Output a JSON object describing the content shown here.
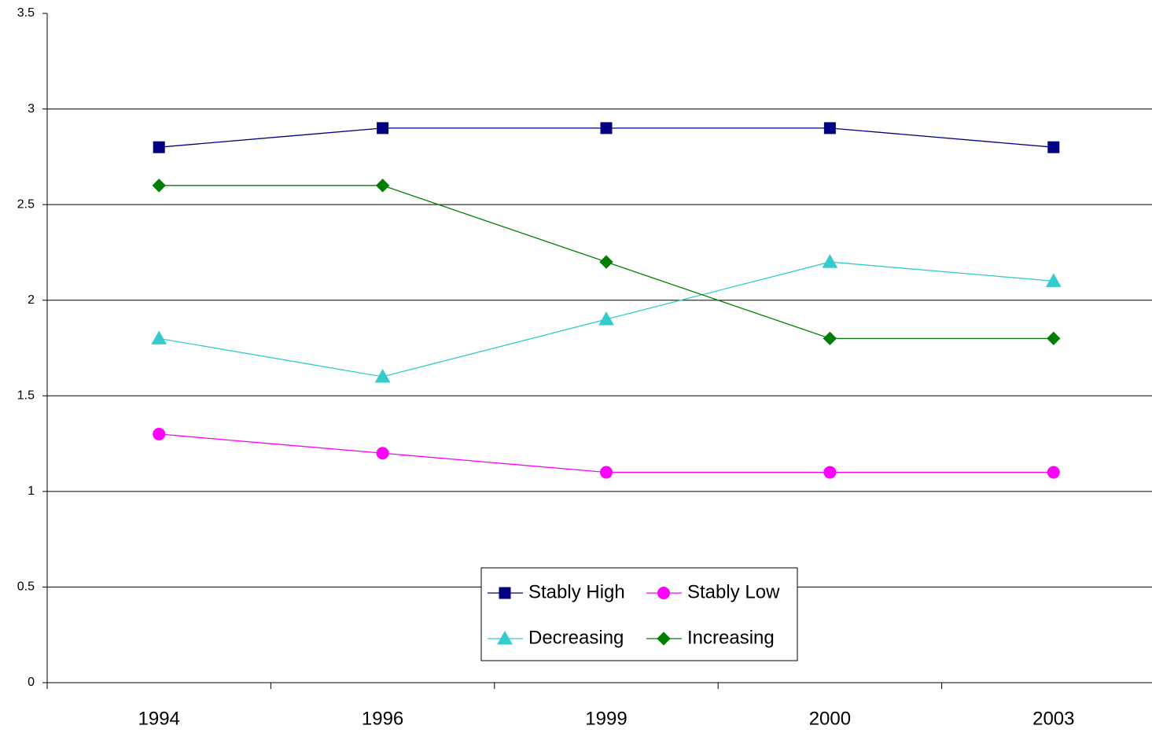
{
  "chart_data": {
    "type": "line",
    "categories": [
      "1994",
      "1996",
      "1999",
      "2000",
      "2003"
    ],
    "series": [
      {
        "name": "Stably High",
        "color": "#000080",
        "marker": "square",
        "values": [
          2.8,
          2.9,
          2.9,
          2.9,
          2.8
        ]
      },
      {
        "name": "Stably Low",
        "color": "#ff00ff",
        "marker": "circle",
        "values": [
          1.3,
          1.2,
          1.1,
          1.1,
          1.1
        ]
      },
      {
        "name": "Decreasing",
        "color": "#33cccc",
        "marker": "triangle",
        "values": [
          1.8,
          1.6,
          1.9,
          2.2,
          2.1
        ]
      },
      {
        "name": "Increasing",
        "color": "#008000",
        "marker": "diamond",
        "values": [
          2.6,
          2.6,
          2.2,
          1.8,
          1.8
        ]
      }
    ],
    "ylim": [
      0,
      3.5
    ],
    "yticks": [
      0,
      0.5,
      1,
      1.5,
      2,
      2.5,
      3,
      3.5
    ],
    "grid": true,
    "legend": "bottom"
  }
}
